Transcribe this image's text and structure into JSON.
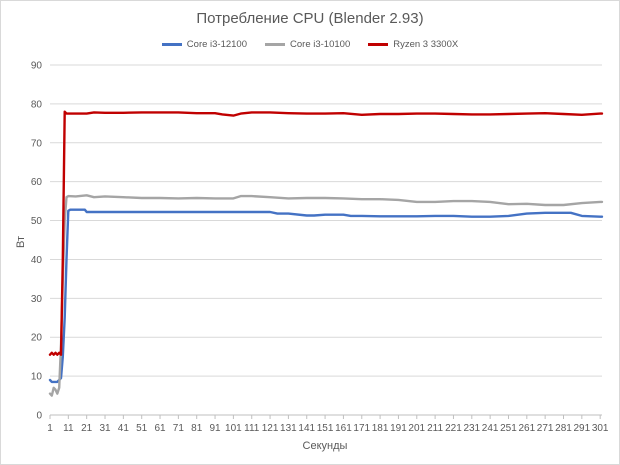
{
  "chart_data": {
    "type": "line",
    "title": "Потребление CPU (Blender 2.93)",
    "xlabel": "Секунды",
    "ylabel": "Вт",
    "ylim": [
      0,
      90
    ],
    "yticks": [
      0,
      10,
      20,
      30,
      40,
      50,
      60,
      70,
      80,
      90
    ],
    "xlim": [
      1,
      302
    ],
    "xticks": [
      1,
      11,
      21,
      31,
      41,
      51,
      61,
      71,
      81,
      91,
      101,
      111,
      121,
      131,
      141,
      151,
      161,
      171,
      181,
      191,
      201,
      211,
      221,
      231,
      241,
      251,
      261,
      271,
      281,
      291,
      301
    ],
    "grid": true,
    "legend_position": "top",
    "series": [
      {
        "name": "Core i3-12100",
        "color": "#4472c4",
        "x": [
          1,
          2,
          3,
          4,
          5,
          6,
          7,
          8,
          9,
          10,
          11,
          12,
          15,
          20,
          21,
          25,
          31,
          41,
          51,
          61,
          71,
          75,
          80,
          85,
          91,
          101,
          111,
          121,
          125,
          131,
          141,
          145,
          151,
          161,
          165,
          171,
          181,
          191,
          201,
          211,
          221,
          231,
          241,
          251,
          261,
          271,
          281,
          285,
          291,
          301,
          302
        ],
        "y": [
          9,
          8.5,
          8.5,
          8.5,
          8.5,
          9,
          9.5,
          15,
          25,
          40,
          52.5,
          52.8,
          52.8,
          52.8,
          52.2,
          52.2,
          52.2,
          52.2,
          52.2,
          52.2,
          52.2,
          52.2,
          52.2,
          52.2,
          52.2,
          52.2,
          52.2,
          52.2,
          51.8,
          51.8,
          51.3,
          51.3,
          51.5,
          51.5,
          51.2,
          51.2,
          51.1,
          51.1,
          51.1,
          51.2,
          51.2,
          51.0,
          51.0,
          51.2,
          51.8,
          52.0,
          52.0,
          52.0,
          51.2,
          51.0,
          51.0
        ]
      },
      {
        "name": "Core i3-10100",
        "color": "#a5a5a5",
        "x": [
          1,
          2,
          3,
          4,
          5,
          6,
          7,
          8,
          9,
          10,
          11,
          15,
          21,
          25,
          31,
          41,
          51,
          61,
          71,
          81,
          91,
          101,
          105,
          111,
          121,
          131,
          141,
          151,
          161,
          171,
          181,
          191,
          201,
          211,
          221,
          231,
          241,
          251,
          261,
          271,
          281,
          291,
          301,
          302
        ],
        "y": [
          5.5,
          5,
          7,
          6.5,
          5.5,
          7,
          18,
          35,
          50,
          56,
          56.3,
          56.2,
          56.5,
          56.0,
          56.2,
          56.0,
          55.8,
          55.8,
          55.7,
          55.8,
          55.7,
          55.7,
          56.3,
          56.3,
          56.0,
          55.7,
          55.8,
          55.8,
          55.7,
          55.5,
          55.5,
          55.3,
          54.8,
          54.8,
          55.0,
          55.0,
          54.8,
          54.2,
          54.3,
          54.0,
          54.0,
          54.5,
          54.8,
          54.8
        ]
      },
      {
        "name": "Ryzen 3 3300X",
        "color": "#c00000",
        "x": [
          1,
          2,
          3,
          4,
          5,
          6,
          7,
          8,
          9,
          10,
          11,
          15,
          21,
          25,
          31,
          41,
          51,
          61,
          71,
          81,
          91,
          95,
          101,
          105,
          111,
          121,
          131,
          141,
          151,
          161,
          171,
          181,
          191,
          201,
          211,
          221,
          231,
          241,
          251,
          261,
          271,
          281,
          291,
          301,
          302
        ],
        "y": [
          15.5,
          16,
          15.5,
          16,
          15.5,
          16,
          15.5,
          40,
          78,
          77.5,
          77.5,
          77.5,
          77.5,
          77.8,
          77.7,
          77.7,
          77.8,
          77.8,
          77.8,
          77.6,
          77.6,
          77.3,
          77.0,
          77.5,
          77.8,
          77.8,
          77.6,
          77.5,
          77.5,
          77.6,
          77.2,
          77.4,
          77.4,
          77.5,
          77.5,
          77.4,
          77.3,
          77.3,
          77.4,
          77.5,
          77.6,
          77.4,
          77.2,
          77.5,
          77.5
        ]
      }
    ]
  }
}
